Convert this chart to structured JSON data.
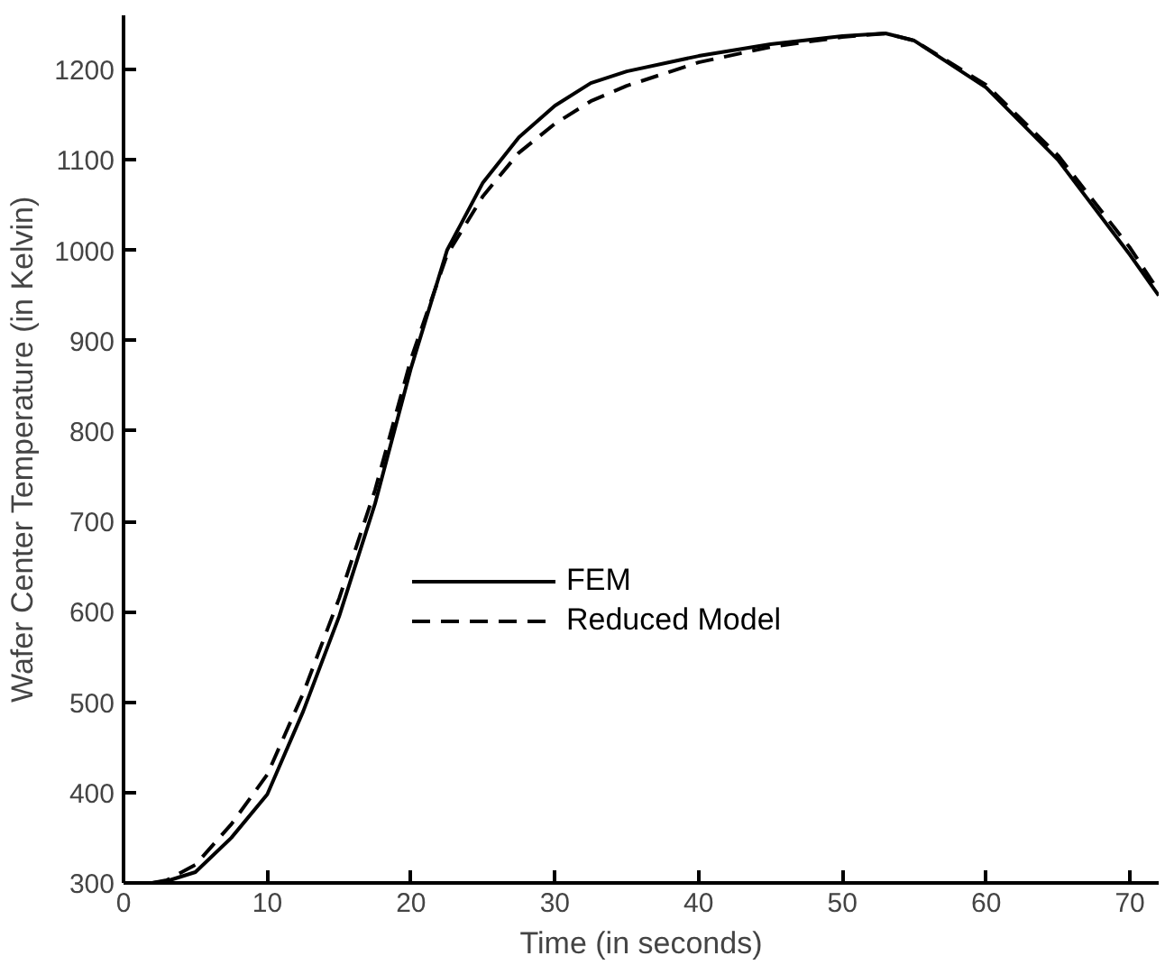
{
  "chart_data": {
    "type": "line",
    "xlabel": "Time (in seconds)",
    "ylabel": "Wafer Center Temperature (in Kelvin)",
    "xlim": [
      0,
      72
    ],
    "ylim": [
      300,
      1260
    ],
    "xticks": [
      0,
      10,
      20,
      30,
      40,
      50,
      60,
      70
    ],
    "yticks": [
      300,
      400,
      500,
      600,
      700,
      800,
      900,
      1000,
      1100,
      1200
    ],
    "x": [
      0,
      2,
      3,
      5,
      7.5,
      10,
      12.5,
      15,
      17.5,
      20,
      22.5,
      25,
      27.5,
      30,
      32.5,
      35,
      40,
      45,
      50,
      53,
      55,
      60,
      65,
      70,
      72
    ],
    "series": [
      {
        "name": "FEM",
        "color": "#000000",
        "line_style": "solid",
        "values": [
          300,
          300,
          302,
          312,
          350,
          398,
          490,
          595,
          720,
          870,
          1000,
          1075,
          1125,
          1160,
          1185,
          1198,
          1215,
          1228,
          1237,
          1240,
          1232,
          1180,
          1100,
          995,
          950
        ]
      },
      {
        "name": "Reduced Model",
        "color": "#000000",
        "line_style": "dashed",
        "values": [
          300,
          300,
          303,
          320,
          365,
          420,
          510,
          615,
          735,
          880,
          995,
          1060,
          1108,
          1140,
          1165,
          1182,
          1208,
          1225,
          1236,
          1240,
          1232,
          1183,
          1105,
          1003,
          955
        ]
      }
    ],
    "grid": false,
    "legend": "center"
  }
}
